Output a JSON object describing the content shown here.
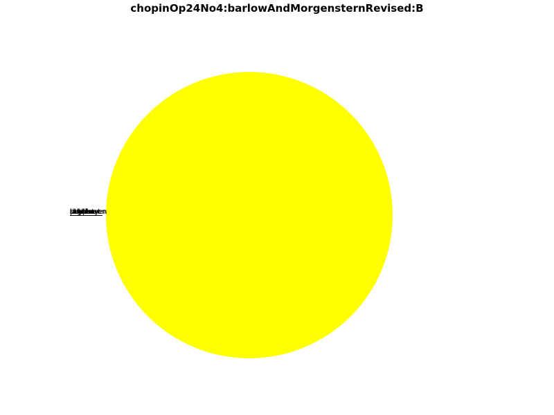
{
  "chart_data": {
    "type": "pie",
    "title": "chopinOp24No4:barlowAndMorgensternRevised:B",
    "slices": [
      {
        "label": "other",
        "value": 100.0,
        "color": "#ffff00"
      },
      {
        "label": "bach",
        "value": 0.0
      },
      {
        "label": "beethoven",
        "value": 0.0
      },
      {
        "label": "chopin",
        "value": 0.0
      },
      {
        "label": "haydn",
        "value": 0.0
      },
      {
        "label": "mozart",
        "value": 0.0
      },
      {
        "label": "schubert",
        "value": 0.0
      },
      {
        "label": "schumann",
        "value": 0.0
      },
      {
        "label": "brahms",
        "value": 0.0
      },
      {
        "label": "debussy",
        "value": 0.0
      },
      {
        "label": "ragtime",
        "value": 0.0
      },
      {
        "label": "pop",
        "value": 0.0
      }
    ],
    "legend": "none"
  }
}
